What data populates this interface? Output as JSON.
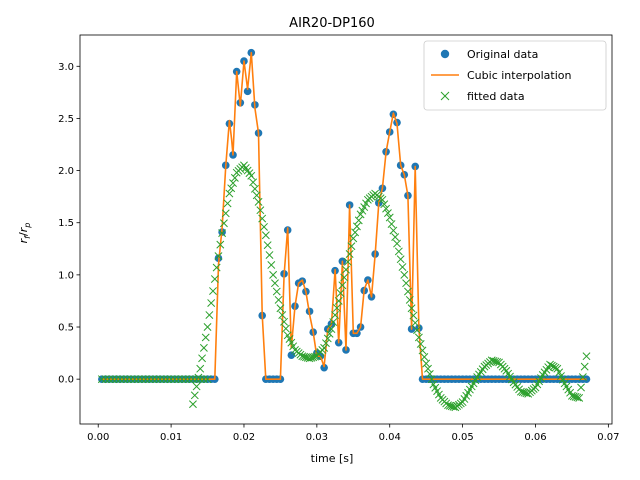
{
  "chart_data": {
    "type": "scatter",
    "title": "AIR20-DP160",
    "xlabel": "time [s]",
    "ylabel": "rf/rp",
    "xlim": [
      -0.0025,
      0.0705
    ],
    "ylim": [
      -0.43,
      3.3
    ],
    "xticks": [
      "0.00",
      "0.01",
      "0.02",
      "0.03",
      "0.04",
      "0.05",
      "0.06",
      "0.07"
    ],
    "yticks": [
      "0.0",
      "0.5",
      "1.0",
      "1.5",
      "2.0",
      "2.5",
      "3.0"
    ],
    "grid": false,
    "legend": {
      "position": "top-right",
      "entries": [
        "Original data",
        "Cubic interpolation",
        "fitted data"
      ]
    },
    "series": [
      {
        "name": "Original data",
        "marker": "circle",
        "color": "#1f77b4",
        "x": [
          0.0165,
          0.017,
          0.0175,
          0.018,
          0.0185,
          0.019,
          0.0195,
          0.02,
          0.0205,
          0.021,
          0.0215,
          0.022,
          0.0225,
          0.023,
          0.0235,
          0.024,
          0.0245,
          0.025,
          0.0255,
          0.026,
          0.0265,
          0.027,
          0.0275,
          0.028,
          0.0285,
          0.029,
          0.0295,
          0.03,
          0.0305,
          0.031,
          0.0315,
          0.032,
          0.0325,
          0.033,
          0.0335,
          0.034,
          0.0345,
          0.035,
          0.0355,
          0.036,
          0.0365,
          0.037,
          0.0375,
          0.038,
          0.0385,
          0.039,
          0.0395,
          0.04,
          0.0405,
          0.041,
          0.0415,
          0.042,
          0.0425,
          0.043,
          0.0435,
          0.044,
          0.0445,
          0.045,
          0.0455
        ],
        "y": [
          1.16,
          1.41,
          2.05,
          2.45,
          2.15,
          2.95,
          2.65,
          3.05,
          2.76,
          3.13,
          2.63,
          2.36,
          0.61,
          0.0,
          0.0,
          0.0,
          0.0,
          0.0,
          1.01,
          1.43,
          0.23,
          0.7,
          0.92,
          0.94,
          0.84,
          0.65,
          0.45,
          0.25,
          0.22,
          0.11,
          0.48,
          0.53,
          1.04,
          0.35,
          1.13,
          0.28,
          1.67,
          0.44,
          0.44,
          0.5,
          0.85,
          0.95,
          0.79,
          1.2,
          1.69,
          1.83,
          2.18,
          2.37,
          2.54,
          2.46,
          2.05,
          1.96,
          1.76,
          0.48,
          2.04,
          0.49,
          0.0,
          0.0,
          0.0
        ],
        "baseline_zero_ranges": [
          [
            0.0005,
            0.016
          ],
          [
            0.0455,
            0.067
          ]
        ]
      },
      {
        "name": "Cubic interpolation",
        "marker": "line",
        "color": "#ff7f0e",
        "x": [
          0.0005,
          0.016,
          0.0165,
          0.017,
          0.0175,
          0.018,
          0.0183,
          0.0185,
          0.019,
          0.0195,
          0.02,
          0.0205,
          0.021,
          0.0215,
          0.022,
          0.0225,
          0.023,
          0.0235,
          0.024,
          0.0245,
          0.025,
          0.0255,
          0.026,
          0.0265,
          0.027,
          0.0275,
          0.028,
          0.0285,
          0.029,
          0.0295,
          0.03,
          0.0305,
          0.031,
          0.0315,
          0.032,
          0.0325,
          0.033,
          0.0335,
          0.034,
          0.0345,
          0.035,
          0.0355,
          0.036,
          0.0365,
          0.037,
          0.0375,
          0.038,
          0.0385,
          0.039,
          0.0395,
          0.04,
          0.0405,
          0.041,
          0.0415,
          0.042,
          0.0425,
          0.043,
          0.0435,
          0.044,
          0.0445,
          0.045,
          0.0455,
          0.067
        ],
        "y": [
          0.0,
          0.0,
          1.1,
          1.45,
          2.05,
          2.48,
          2.3,
          2.15,
          2.95,
          2.62,
          3.05,
          2.78,
          3.13,
          2.6,
          2.36,
          0.62,
          0.0,
          0.0,
          0.0,
          0.0,
          0.0,
          1.0,
          1.45,
          0.3,
          0.7,
          0.92,
          0.95,
          0.84,
          0.62,
          0.45,
          0.22,
          0.22,
          0.12,
          0.48,
          0.52,
          1.05,
          0.35,
          1.13,
          0.28,
          1.67,
          0.44,
          0.44,
          0.5,
          0.86,
          0.95,
          0.79,
          1.2,
          1.69,
          1.83,
          2.18,
          2.37,
          2.55,
          2.45,
          2.05,
          1.96,
          1.76,
          0.48,
          2.04,
          0.49,
          0.0,
          0.0,
          0.0,
          0.0
        ]
      },
      {
        "name": "fitted data",
        "marker": "x",
        "color": "#2ca02c",
        "x": [
          0.013,
          0.014,
          0.015,
          0.016,
          0.017,
          0.018,
          0.019,
          0.02,
          0.021,
          0.022,
          0.023,
          0.024,
          0.025,
          0.026,
          0.027,
          0.028,
          0.029,
          0.03,
          0.031,
          0.032,
          0.033,
          0.034,
          0.035,
          0.036,
          0.037,
          0.038,
          0.039,
          0.04,
          0.041,
          0.042,
          0.043,
          0.044,
          0.045,
          0.046,
          0.047,
          0.048,
          0.049,
          0.05,
          0.051,
          0.052,
          0.053,
          0.054,
          0.055,
          0.056,
          0.057,
          0.058,
          0.059,
          0.06,
          0.061,
          0.062,
          0.063,
          0.064,
          0.065,
          0.066,
          0.067
        ],
        "y": [
          -0.24,
          0.1,
          0.5,
          0.96,
          1.4,
          1.78,
          1.98,
          2.05,
          1.95,
          1.7,
          1.38,
          1.0,
          0.68,
          0.42,
          0.28,
          0.22,
          0.2,
          0.22,
          0.3,
          0.48,
          0.75,
          1.05,
          1.35,
          1.58,
          1.72,
          1.78,
          1.72,
          1.55,
          1.3,
          1.0,
          0.68,
          0.4,
          0.15,
          -0.05,
          -0.18,
          -0.25,
          -0.27,
          -0.22,
          -0.1,
          0.02,
          0.12,
          0.18,
          0.16,
          0.08,
          -0.03,
          -0.12,
          -0.14,
          -0.08,
          0.04,
          0.14,
          0.1,
          -0.04,
          -0.16,
          -0.18,
          0.22
        ],
        "baseline_zero_range": [
          0.0005,
          0.015
        ]
      }
    ]
  }
}
